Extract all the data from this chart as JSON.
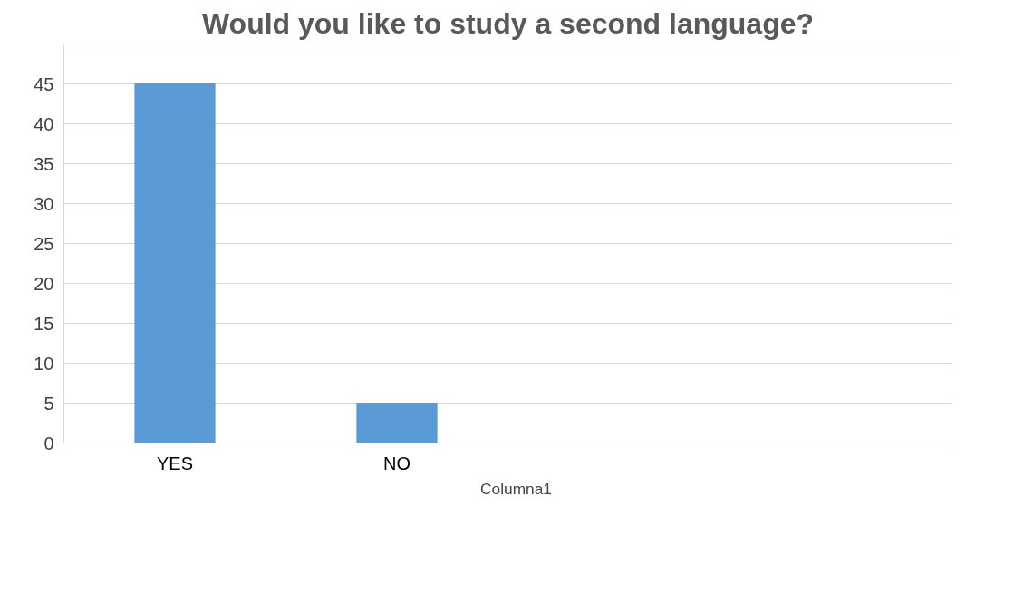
{
  "chart_data": {
    "type": "bar",
    "title": "Would you like to study a second language?",
    "categories": [
      "YES",
      "NO",
      null,
      null
    ],
    "series": [
      {
        "name": "Columna1",
        "color": "#5b9bd5",
        "values": [
          45,
          5,
          null,
          null
        ]
      }
    ],
    "ylim": [
      0,
      50
    ],
    "yticks": [
      0,
      5,
      10,
      15,
      20,
      25,
      30,
      35,
      40,
      45,
      {
        "value": 50,
        "label": null
      }
    ],
    "grid": "y",
    "legend": "bottom"
  }
}
